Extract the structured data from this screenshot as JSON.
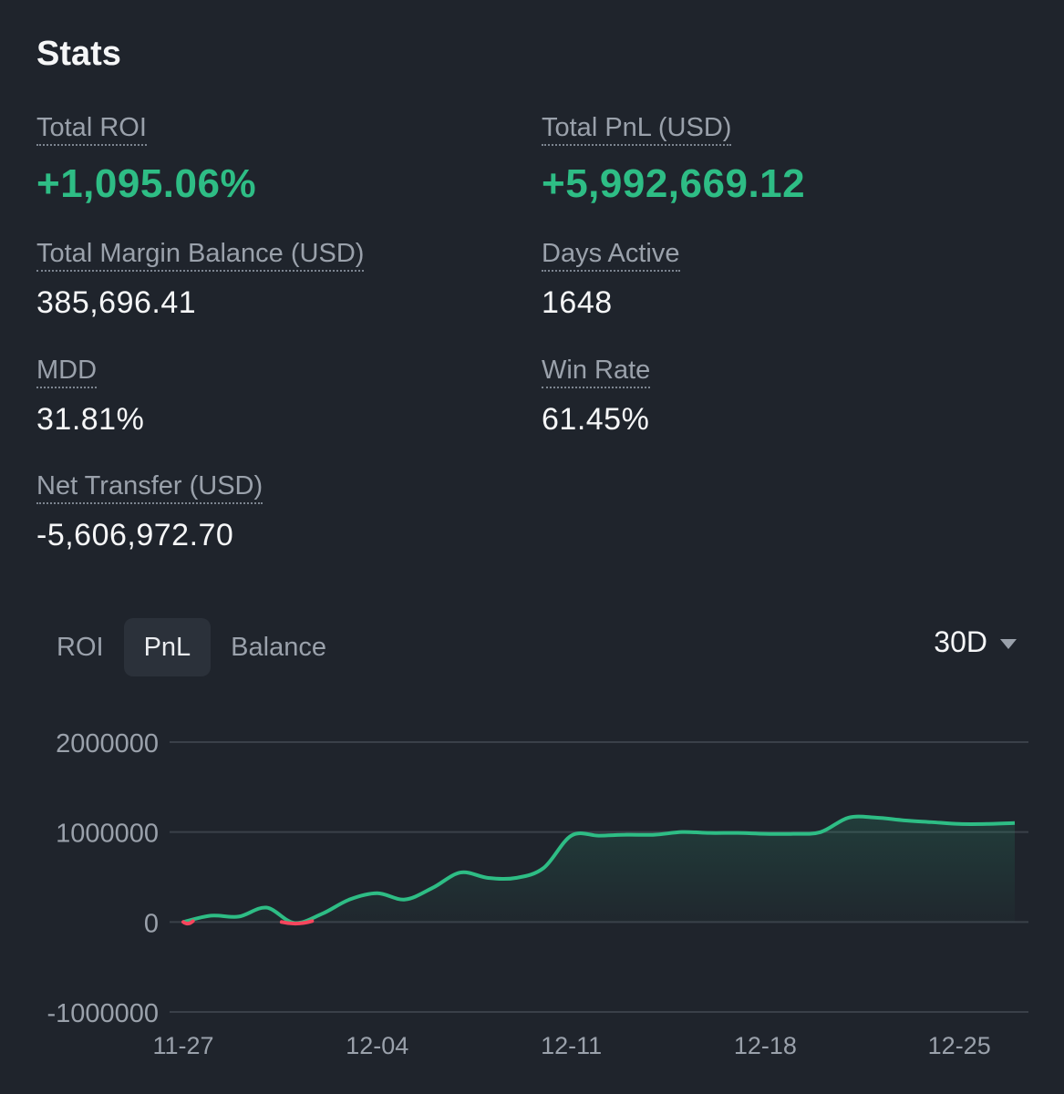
{
  "header": {
    "title": "Stats"
  },
  "stats": {
    "total_roi": {
      "label": "Total ROI",
      "value": "+1,095.06%"
    },
    "total_pnl": {
      "label": "Total PnL (USD)",
      "value": "+5,992,669.12"
    },
    "margin_balance": {
      "label": "Total Margin Balance (USD)",
      "value": "385,696.41"
    },
    "days_active": {
      "label": "Days Active",
      "value": "1648"
    },
    "mdd": {
      "label": "MDD",
      "value": "31.81%"
    },
    "win_rate": {
      "label": "Win Rate",
      "value": "61.45%"
    },
    "net_transfer": {
      "label": "Net Transfer (USD)",
      "value": "-5,606,972.70"
    }
  },
  "tabs": [
    {
      "label": "ROI",
      "active": false
    },
    {
      "label": "PnL",
      "active": true
    },
    {
      "label": "Balance",
      "active": false
    }
  ],
  "period": {
    "label": "30D",
    "icon": "caret-down-icon"
  },
  "colors": {
    "positive": "#2ebd85",
    "negative": "#f6465d",
    "grid": "#3a4049",
    "axis_text": "#9aa1ab",
    "background": "#1f242c"
  },
  "chart_data": {
    "type": "area",
    "title": "",
    "xlabel": "",
    "ylabel": "",
    "x_ticks": [
      "11-27",
      "12-04",
      "12-11",
      "12-18",
      "12-25"
    ],
    "y_ticks": [
      2000000,
      1000000,
      0,
      -1000000
    ],
    "ylim": [
      -1000000,
      2000000
    ],
    "grid": true,
    "series": [
      {
        "values": [
          {
            "x": "2023-11-27",
            "y": 0
          },
          {
            "x": "2023-11-28",
            "y": 70000
          },
          {
            "x": "2023-11-29",
            "y": 60000
          },
          {
            "x": "2023-11-30",
            "y": 160000
          },
          {
            "x": "2023-12-01",
            "y": -10000
          },
          {
            "x": "2023-12-02",
            "y": 90000
          },
          {
            "x": "2023-12-03",
            "y": 250000
          },
          {
            "x": "2023-12-04",
            "y": 320000
          },
          {
            "x": "2023-12-05",
            "y": 250000
          },
          {
            "x": "2023-12-06",
            "y": 380000
          },
          {
            "x": "2023-12-07",
            "y": 550000
          },
          {
            "x": "2023-12-08",
            "y": 490000
          },
          {
            "x": "2023-12-09",
            "y": 490000
          },
          {
            "x": "2023-12-10",
            "y": 600000
          },
          {
            "x": "2023-12-11",
            "y": 960000
          },
          {
            "x": "2023-12-12",
            "y": 960000
          },
          {
            "x": "2023-12-13",
            "y": 970000
          },
          {
            "x": "2023-12-14",
            "y": 970000
          },
          {
            "x": "2023-12-15",
            "y": 1000000
          },
          {
            "x": "2023-12-16",
            "y": 990000
          },
          {
            "x": "2023-12-17",
            "y": 990000
          },
          {
            "x": "2023-12-18",
            "y": 980000
          },
          {
            "x": "2023-12-19",
            "y": 980000
          },
          {
            "x": "2023-12-20",
            "y": 1000000
          },
          {
            "x": "2023-12-21",
            "y": 1160000
          },
          {
            "x": "2023-12-22",
            "y": 1160000
          },
          {
            "x": "2023-12-23",
            "y": 1130000
          },
          {
            "x": "2023-12-24",
            "y": 1110000
          },
          {
            "x": "2023-12-25",
            "y": 1090000
          },
          {
            "x": "2023-12-26",
            "y": 1090000
          },
          {
            "x": "2023-12-27",
            "y": 1100000
          }
        ]
      }
    ]
  }
}
